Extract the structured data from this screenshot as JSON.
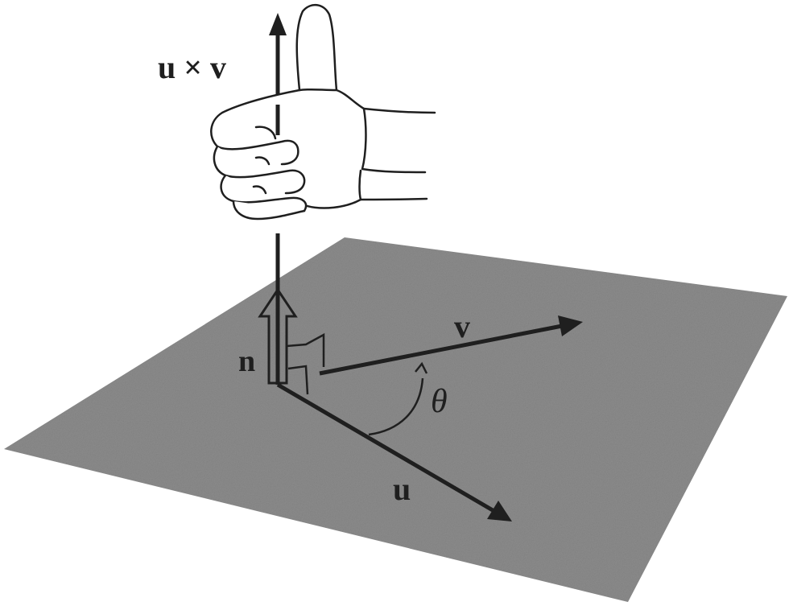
{
  "diagram": {
    "labels": {
      "cross_product": "u × v",
      "vector_v": "v",
      "normal": "n",
      "vector_u": "u",
      "angle": "θ"
    },
    "colors": {
      "plane": "#8c8c8c",
      "ink": "#1f1f1f",
      "background": "#ffffff"
    },
    "icons": {
      "hand": "right-hand-thumb-up-icon"
    }
  }
}
